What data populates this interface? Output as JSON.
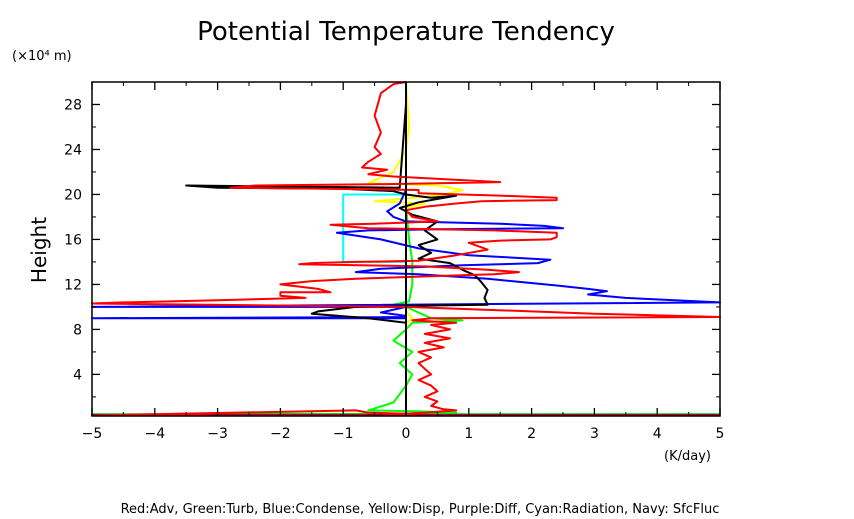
{
  "chart_data": {
    "type": "line",
    "title": "Potential Temperature Tendency",
    "ylabel": "Height",
    "yunit": "(×10⁴ m)",
    "xunit": "(K/day)",
    "xlim": [
      -5,
      5
    ],
    "ylim": [
      0.3,
      30
    ],
    "xticks": [
      -5,
      -4,
      -3,
      -2,
      -1,
      0,
      1,
      2,
      3,
      4,
      5
    ],
    "xtick_labels": [
      "−5",
      "−4",
      "−3",
      "−2",
      "−1",
      "0",
      "1",
      "2",
      "3",
      "4",
      "5"
    ],
    "yticks": [
      4,
      8,
      12,
      16,
      20,
      24,
      28
    ],
    "ytick_labels": [
      "4",
      "8",
      "12",
      "16",
      "20",
      "24",
      "28"
    ],
    "legend_text": "Red:Adv, Green:Turb, Blue:Condense, Yellow:Disp, Purple:Diff, Cyan:Radiation, Navy: SfcFluc",
    "grid": false,
    "series": [
      {
        "color": "#ffff00",
        "points": [
          [
            0,
            30
          ],
          [
            0.05,
            26
          ],
          [
            0,
            24
          ],
          [
            -0.2,
            22
          ],
          [
            -0.6,
            21
          ],
          [
            0.5,
            20.8
          ],
          [
            0.9,
            20.4
          ],
          [
            0.6,
            20.0
          ],
          [
            0.3,
            19.8
          ],
          [
            -0.1,
            19.6
          ],
          [
            -0.5,
            19.4
          ],
          [
            0.3,
            19.2
          ],
          [
            0,
            18.8
          ],
          [
            0,
            9.6
          ],
          [
            0.1,
            9.0
          ],
          [
            0,
            8.5
          ],
          [
            0,
            0.3
          ]
        ]
      },
      {
        "color": "#00ff00",
        "points": [
          [
            0,
            19
          ],
          [
            0.05,
            16
          ],
          [
            0.1,
            14
          ],
          [
            0.1,
            12
          ],
          [
            0.05,
            10.5
          ],
          [
            -0.2,
            10.2
          ],
          [
            -0.35,
            10.0
          ],
          [
            0,
            10
          ],
          [
            0.4,
            9.0
          ],
          [
            0.9,
            8.8
          ],
          [
            0.1,
            8.6
          ],
          [
            0,
            8.0
          ],
          [
            -0.2,
            7.0
          ],
          [
            0.1,
            6.0
          ],
          [
            -0.1,
            5.0
          ],
          [
            0.1,
            4.0
          ],
          [
            0,
            3.0
          ],
          [
            -0.2,
            1.5
          ],
          [
            -0.6,
            0.8
          ],
          [
            0.3,
            0.7
          ],
          [
            0.8,
            0.6
          ],
          [
            0,
            0.5
          ],
          [
            -5,
            0.45
          ],
          [
            5,
            0.45
          ]
        ]
      },
      {
        "color": "#00ffff",
        "points": [
          [
            0,
            20
          ],
          [
            -1,
            20
          ],
          [
            -1,
            14
          ],
          [
            0,
            14
          ]
        ]
      },
      {
        "color": "#000080",
        "points": [
          [
            -5,
            0.4
          ],
          [
            5,
            0.4
          ]
        ]
      },
      {
        "color": "#0000ff",
        "points": [
          [
            0,
            20.4
          ],
          [
            -0.1,
            19.2
          ],
          [
            -0.3,
            18.5
          ],
          [
            -0.2,
            18.0
          ],
          [
            0,
            17.6
          ],
          [
            1.5,
            17.4
          ],
          [
            2.2,
            17.2
          ],
          [
            2.5,
            17.0
          ],
          [
            0.5,
            16.9
          ],
          [
            -0.6,
            16.8
          ],
          [
            -1.1,
            16.6
          ],
          [
            -0.4,
            16.0
          ],
          [
            0.2,
            15.2
          ],
          [
            1.0,
            14.6
          ],
          [
            2.3,
            14.2
          ],
          [
            2.1,
            13.9
          ],
          [
            0.9,
            13.7
          ],
          [
            -0.4,
            13.4
          ],
          [
            -0.8,
            13.1
          ],
          [
            0.2,
            12.9
          ],
          [
            1.3,
            12.5
          ],
          [
            2.4,
            11.9
          ],
          [
            2.9,
            11.6
          ],
          [
            3.2,
            11.4
          ],
          [
            2.9,
            11.1
          ],
          [
            3.5,
            10.8
          ],
          [
            5,
            10.4
          ],
          [
            -5,
            10.0
          ],
          [
            0,
            10.0
          ],
          [
            -0.4,
            9.5
          ],
          [
            0,
            9.2
          ],
          [
            0,
            9.1
          ],
          [
            -5,
            9.0
          ],
          [
            0,
            9.0
          ],
          [
            0,
            0.5
          ]
        ]
      },
      {
        "color": "#000000",
        "points": [
          [
            0,
            30
          ],
          [
            0,
            28
          ],
          [
            -0.1,
            20.6
          ],
          [
            -3.5,
            20.8
          ],
          [
            -3.0,
            20.6
          ],
          [
            -1.0,
            20.5
          ],
          [
            -0.2,
            20.3
          ],
          [
            0,
            20.0
          ],
          [
            0.4,
            19.7
          ],
          [
            0.8,
            19.9
          ],
          [
            0.2,
            19.3
          ],
          [
            -0.1,
            18.8
          ],
          [
            0.1,
            18.2
          ],
          [
            0.5,
            17.6
          ],
          [
            0.3,
            16.8
          ],
          [
            0.5,
            16.0
          ],
          [
            0.2,
            15.5
          ],
          [
            0.4,
            14.8
          ],
          [
            0.2,
            14.3
          ],
          [
            0.7,
            13.9
          ],
          [
            0.9,
            13.3
          ],
          [
            1.1,
            12.8
          ],
          [
            1.2,
            12.2
          ],
          [
            1.3,
            11.5
          ],
          [
            1.25,
            10.8
          ],
          [
            1.3,
            10.2
          ],
          [
            0.1,
            10.1
          ],
          [
            -0.8,
            10.0
          ],
          [
            -1.4,
            9.6
          ],
          [
            -1.5,
            9.4
          ],
          [
            -0.6,
            9.0
          ],
          [
            0,
            8.6
          ],
          [
            0,
            8.0
          ],
          [
            0,
            6.0
          ],
          [
            0,
            4.0
          ],
          [
            0,
            0.5
          ]
        ]
      },
      {
        "color": "#ff0000",
        "points": [
          [
            0,
            30
          ],
          [
            -0.2,
            29.8
          ],
          [
            -0.4,
            29.0
          ],
          [
            -0.5,
            27.0
          ],
          [
            -0.4,
            25.5
          ],
          [
            -0.5,
            24.2
          ],
          [
            -0.4,
            23.6
          ],
          [
            -0.6,
            22.9
          ],
          [
            -0.7,
            22.4
          ],
          [
            -0.3,
            22.2
          ],
          [
            -0.6,
            21.8
          ],
          [
            -0.2,
            21.6
          ],
          [
            1.5,
            21.1
          ],
          [
            -0.5,
            20.9
          ],
          [
            -2.4,
            20.8
          ],
          [
            -2.8,
            20.6
          ],
          [
            -1.2,
            20.5
          ],
          [
            0.2,
            20.4
          ],
          [
            0.2,
            20.1
          ],
          [
            1.5,
            19.9
          ],
          [
            2.4,
            19.7
          ],
          [
            2.4,
            19.5
          ],
          [
            1.2,
            19.4
          ],
          [
            0.8,
            19.2
          ],
          [
            0.3,
            18.9
          ],
          [
            0,
            18.6
          ],
          [
            0.1,
            18.0
          ],
          [
            0.5,
            17.6
          ],
          [
            -0.5,
            17.4
          ],
          [
            -1.2,
            17.3
          ],
          [
            -0.6,
            17.0
          ],
          [
            0.5,
            16.9
          ],
          [
            1.4,
            16.8
          ],
          [
            2.4,
            16.6
          ],
          [
            2.4,
            16.2
          ],
          [
            2.3,
            16.0
          ],
          [
            1.5,
            15.9
          ],
          [
            1.0,
            15.7
          ],
          [
            1.3,
            15.1
          ],
          [
            0.8,
            14.6
          ],
          [
            0.2,
            14.1
          ],
          [
            -0.8,
            14.0
          ],
          [
            -1.5,
            13.9
          ],
          [
            -1.7,
            13.8
          ],
          [
            0.3,
            13.6
          ],
          [
            1.3,
            13.3
          ],
          [
            1.8,
            13.1
          ],
          [
            1.4,
            12.9
          ],
          [
            0.2,
            12.7
          ],
          [
            -0.8,
            12.5
          ],
          [
            -1.5,
            12.3
          ],
          [
            -2.0,
            12.0
          ],
          [
            -1.4,
            11.6
          ],
          [
            -1.2,
            11.3
          ],
          [
            -2.0,
            11.3
          ],
          [
            -2.0,
            11.0
          ],
          [
            -1.6,
            10.8
          ],
          [
            -3.0,
            10.6
          ],
          [
            -4.5,
            10.4
          ],
          [
            -5,
            10.3
          ],
          [
            -5,
            10.3
          ],
          [
            0,
            10.0
          ],
          [
            2.0,
            9.6
          ],
          [
            3.0,
            9.4
          ],
          [
            5,
            9.1
          ],
          [
            0.4,
            9.0
          ],
          [
            0.1,
            8.8
          ],
          [
            0.8,
            8.6
          ],
          [
            0.4,
            8.4
          ],
          [
            0.7,
            8.0
          ],
          [
            0.3,
            7.6
          ],
          [
            0.7,
            7.2
          ],
          [
            0.3,
            6.8
          ],
          [
            0.6,
            6.4
          ],
          [
            0.2,
            6.0
          ],
          [
            0.4,
            5.5
          ],
          [
            0.2,
            5.0
          ],
          [
            0.3,
            4.5
          ],
          [
            0.4,
            4.0
          ],
          [
            0.2,
            3.5
          ],
          [
            0.4,
            3.0
          ],
          [
            0.5,
            2.5
          ],
          [
            0.3,
            2.0
          ],
          [
            0.5,
            1.6
          ],
          [
            0.4,
            1.2
          ],
          [
            0.6,
            0.9
          ],
          [
            0.8,
            0.8
          ],
          [
            0.3,
            0.6
          ],
          [
            0,
            0.5
          ],
          [
            -0.6,
            0.6
          ],
          [
            -0.8,
            0.8
          ],
          [
            -5,
            0.35
          ],
          [
            5,
            0.35
          ]
        ]
      }
    ]
  }
}
